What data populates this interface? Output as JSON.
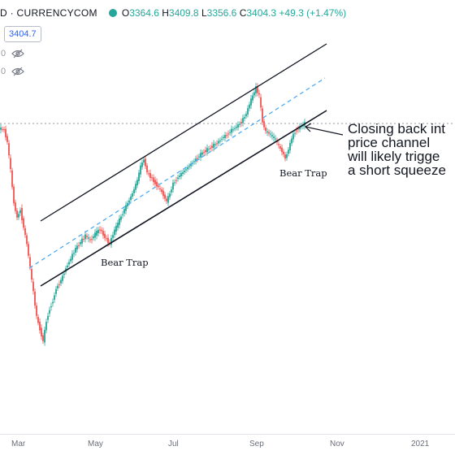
{
  "header": {
    "symbol_fragment": "D · CURRENCYCOM",
    "ohlc": [
      {
        "k": "O",
        "v": "3364.6"
      },
      {
        "k": "H",
        "v": "3409.8"
      },
      {
        "k": "L",
        "v": "3356.6"
      },
      {
        "k": "C",
        "v": "3404.3"
      }
    ],
    "change": "+49.3 (+1.47%)"
  },
  "price_box": "3404.7",
  "indicator_rows": [
    {
      "digit": "0",
      "icon": "eye-hidden-icon"
    },
    {
      "digit": "0",
      "icon": "eye-hidden-icon"
    }
  ],
  "annotation": {
    "lines": [
      "Closing back int",
      "price channel",
      "will likely trigge",
      "a short squeeze"
    ]
  },
  "labels": {
    "bear_trap_1": "Bear Trap",
    "bear_trap_2": "Bear Trap"
  },
  "x_axis": {
    "ticks": [
      "Mar",
      "May",
      "Jul",
      "Sep",
      "Nov",
      "2021"
    ]
  },
  "colors": {
    "up": "#26a69a",
    "down": "#ef5350",
    "channel": "#131722",
    "midline": "#42a5f5",
    "price_line": "#9598a1",
    "accent_blue": "#2962ff"
  },
  "chart_data": {
    "type": "candlestick",
    "instrument": "CURRENCYCOM",
    "last_price": 3404.7,
    "x_ticks": [
      "Mar",
      "May",
      "Jul",
      "Sep",
      "Nov",
      "2021"
    ],
    "annotations": [
      "Bear Trap",
      "Bear Trap",
      "Closing back int price channel will likely trigge a short squeeze"
    ]
  }
}
